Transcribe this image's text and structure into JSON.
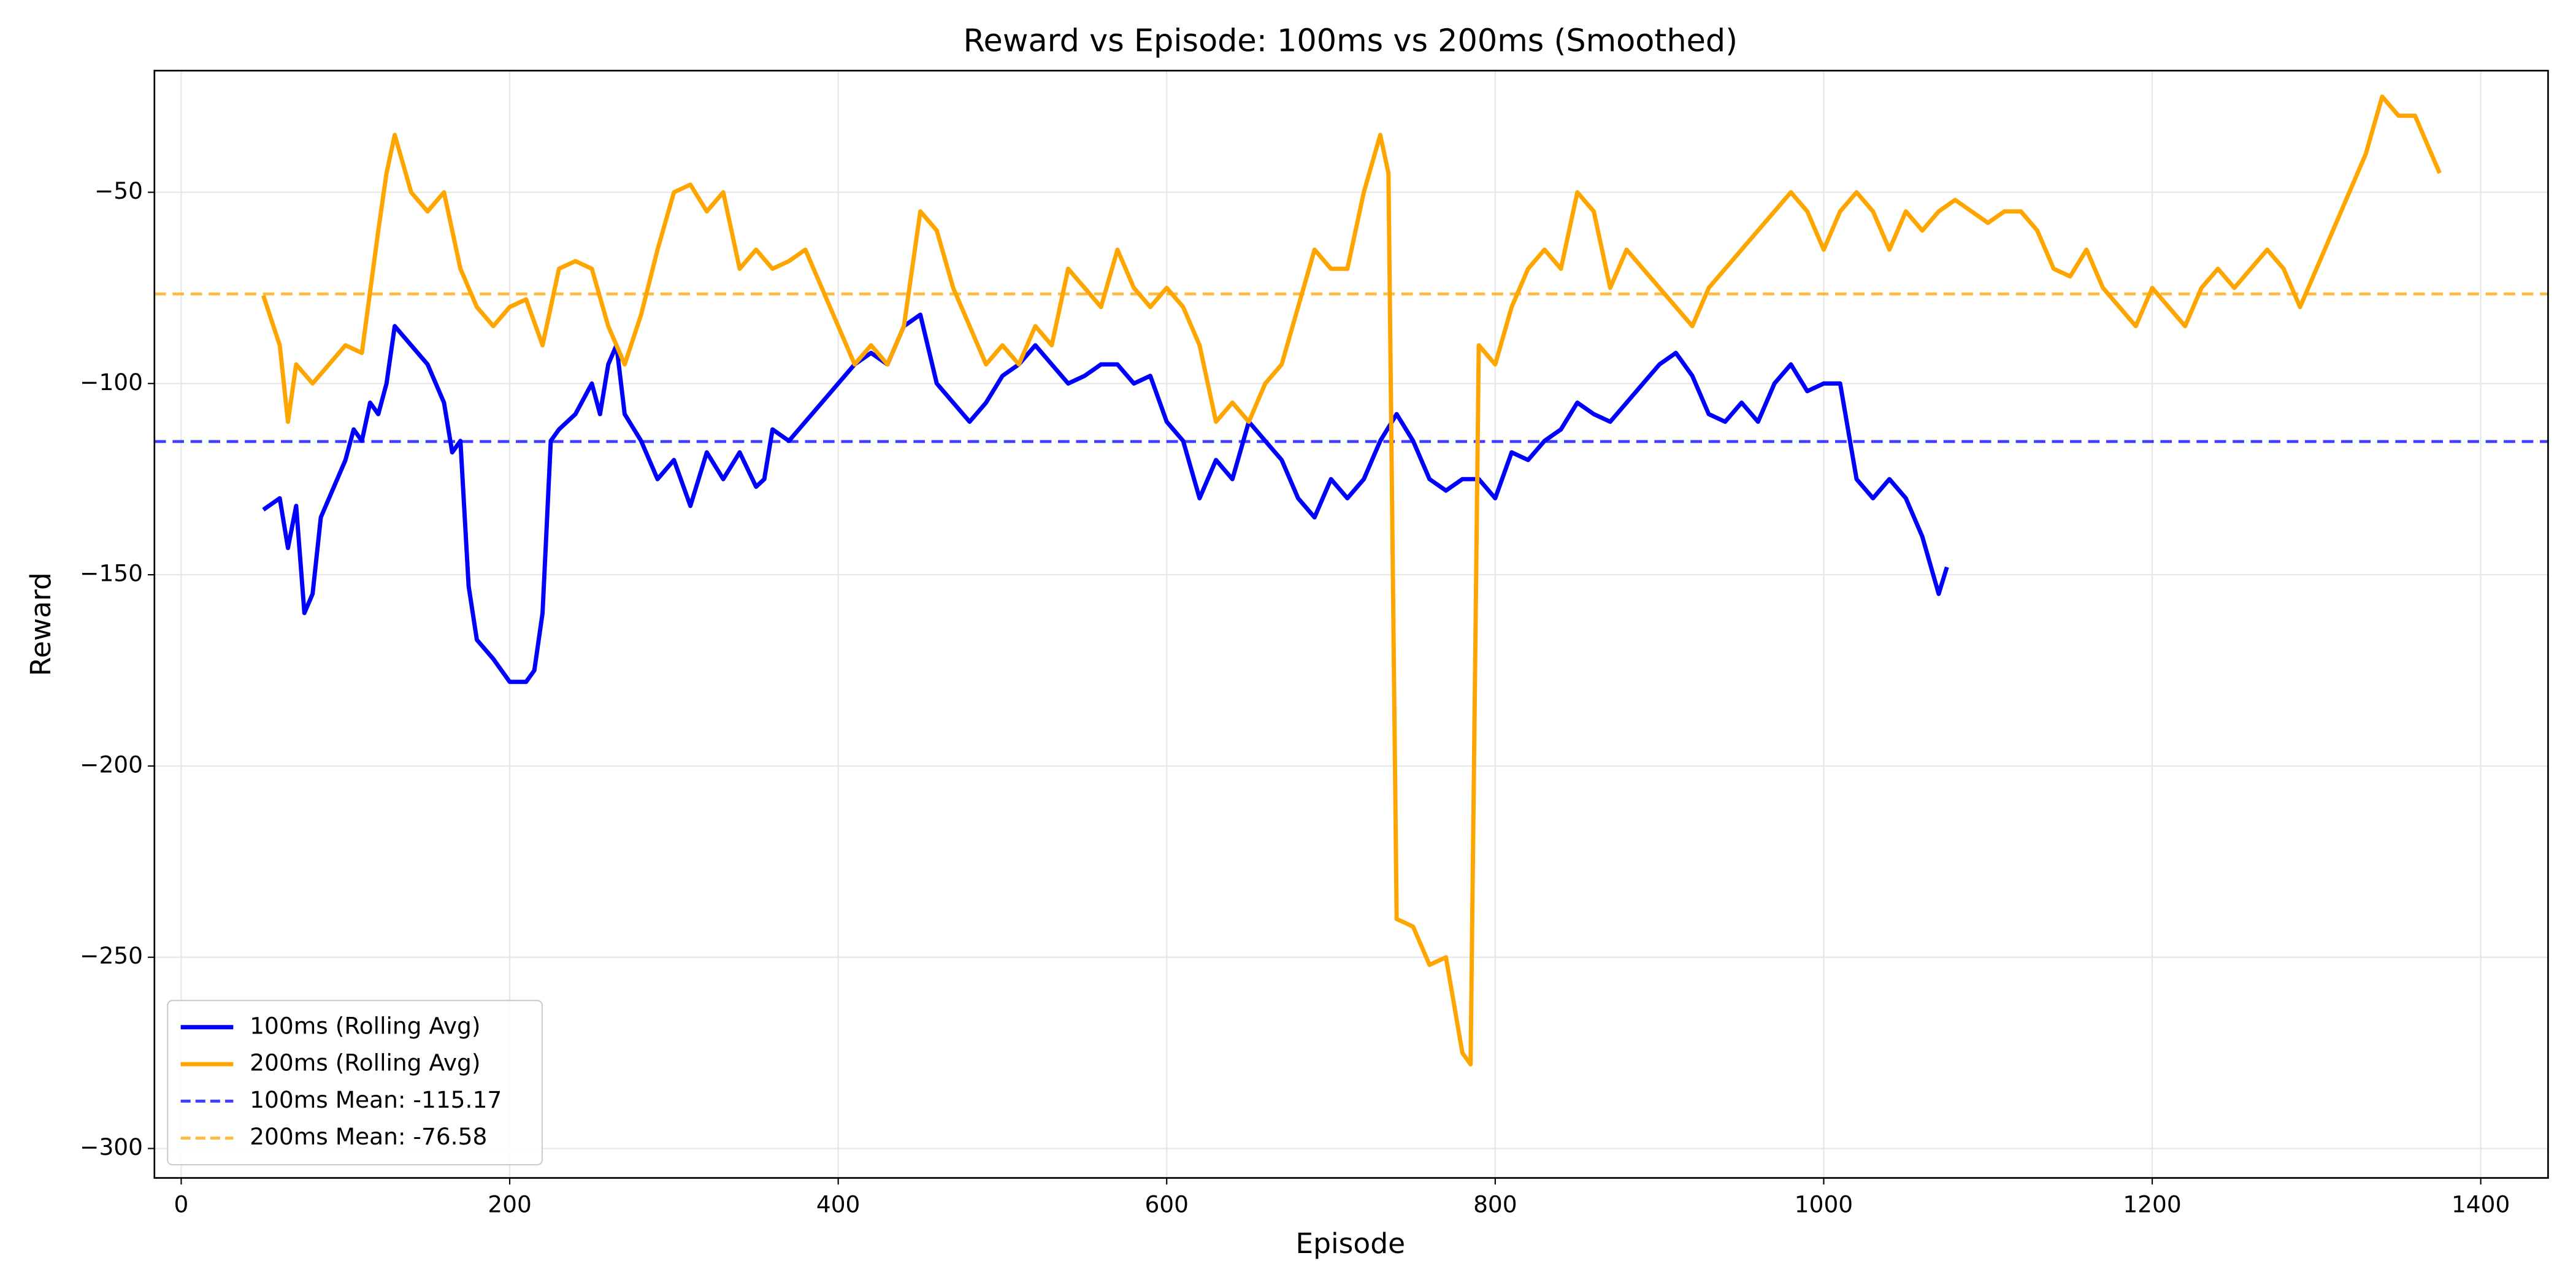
{
  "chart_data": {
    "type": "line",
    "title": "Reward vs Episode: 100ms vs 200ms (Smoothed)",
    "x_label": "Episode",
    "y_label": "Reward",
    "xlim": [
      -16.3,
      1441
    ],
    "ylim": [
      -307.7,
      -18.2
    ],
    "xticks": [
      0,
      200,
      400,
      600,
      800,
      1000,
      1200,
      1400
    ],
    "yticks": [
      {
        "value": -300,
        "label": "−300"
      },
      {
        "value": -250,
        "label": "−250"
      },
      {
        "value": -200,
        "label": "−200"
      },
      {
        "value": -150,
        "label": "−150"
      },
      {
        "value": -100,
        "label": "−100"
      },
      {
        "value": -50,
        "label": "−50"
      }
    ],
    "grid": true,
    "legend_position": "lower left",
    "series": [
      {
        "name": "100ms (Rolling Avg)",
        "color": "#0000ff",
        "x": [
          50,
          60,
          65,
          70,
          75,
          80,
          85,
          90,
          100,
          105,
          110,
          115,
          120,
          125,
          130,
          140,
          150,
          160,
          165,
          170,
          175,
          180,
          190,
          200,
          210,
          215,
          220,
          225,
          230,
          240,
          250,
          255,
          260,
          265,
          270,
          280,
          290,
          300,
          310,
          320,
          330,
          340,
          350,
          355,
          360,
          370,
          380,
          390,
          400,
          410,
          420,
          430,
          440,
          450,
          460,
          470,
          480,
          490,
          500,
          510,
          520,
          530,
          540,
          550,
          560,
          570,
          580,
          590,
          600,
          610,
          620,
          630,
          640,
          650,
          660,
          670,
          680,
          690,
          700,
          710,
          720,
          730,
          740,
          750,
          760,
          770,
          780,
          790,
          800,
          810,
          820,
          830,
          840,
          850,
          860,
          870,
          880,
          890,
          900,
          910,
          920,
          930,
          940,
          950,
          960,
          970,
          980,
          990,
          1000,
          1010,
          1020,
          1030,
          1040,
          1050,
          1060,
          1070,
          1075
        ],
        "values": [
          -133,
          -130,
          -143,
          -132,
          -160,
          -155,
          -135,
          -130,
          -120,
          -112,
          -115,
          -105,
          -108,
          -100,
          -85,
          -90,
          -95,
          -105,
          -118,
          -115,
          -153,
          -167,
          -172,
          -178,
          -178,
          -175,
          -160,
          -115,
          -112,
          -108,
          -100,
          -108,
          -95,
          -90,
          -108,
          -115,
          -125,
          -120,
          -132,
          -118,
          -125,
          -118,
          -127,
          -125,
          -112,
          -115,
          -110,
          -105,
          -100,
          -95,
          -92,
          -95,
          -85,
          -82,
          -100,
          -105,
          -110,
          -105,
          -98,
          -95,
          -90,
          -95,
          -100,
          -98,
          -95,
          -95,
          -100,
          -98,
          -110,
          -115,
          -130,
          -120,
          -125,
          -110,
          -115,
          -120,
          -130,
          -135,
          -125,
          -130,
          -125,
          -115,
          -108,
          -115,
          -125,
          -128,
          -125,
          -125,
          -130,
          -118,
          -120,
          -115,
          -112,
          -105,
          -108,
          -110,
          -105,
          -100,
          -95,
          -92,
          -98,
          -108,
          -110,
          -105,
          -110,
          -100,
          -95,
          -102,
          -100,
          -100,
          -125,
          -130,
          -125,
          -130,
          -140,
          -155,
          -148
        ]
      },
      {
        "name": "200ms (Rolling Avg)",
        "color": "#ffa500",
        "x": [
          50,
          60,
          65,
          70,
          80,
          90,
          100,
          110,
          120,
          125,
          130,
          140,
          150,
          160,
          170,
          180,
          190,
          200,
          210,
          220,
          230,
          240,
          250,
          260,
          270,
          280,
          290,
          300,
          310,
          320,
          330,
          340,
          350,
          360,
          370,
          380,
          390,
          400,
          410,
          420,
          430,
          440,
          450,
          460,
          470,
          480,
          490,
          500,
          510,
          520,
          530,
          540,
          550,
          560,
          570,
          580,
          590,
          600,
          610,
          620,
          630,
          640,
          650,
          660,
          670,
          680,
          690,
          700,
          710,
          720,
          730,
          735,
          740,
          750,
          760,
          770,
          780,
          785,
          790,
          800,
          810,
          820,
          830,
          840,
          850,
          860,
          870,
          880,
          890,
          900,
          910,
          920,
          930,
          940,
          950,
          960,
          970,
          980,
          990,
          1000,
          1010,
          1020,
          1030,
          1040,
          1050,
          1060,
          1070,
          1080,
          1090,
          1100,
          1110,
          1120,
          1130,
          1140,
          1150,
          1160,
          1170,
          1180,
          1190,
          1200,
          1210,
          1220,
          1230,
          1240,
          1250,
          1260,
          1270,
          1280,
          1290,
          1300,
          1310,
          1320,
          1330,
          1340,
          1350,
          1360,
          1370,
          1375
        ],
        "values": [
          -77,
          -90,
          -110,
          -95,
          -100,
          -95,
          -90,
          -92,
          -60,
          -45,
          -35,
          -50,
          -55,
          -50,
          -70,
          -80,
          -85,
          -80,
          -78,
          -90,
          -70,
          -68,
          -70,
          -85,
          -95,
          -82,
          -65,
          -50,
          -48,
          -55,
          -50,
          -70,
          -65,
          -70,
          -68,
          -65,
          -75,
          -85,
          -95,
          -90,
          -95,
          -85,
          -55,
          -60,
          -75,
          -85,
          -95,
          -90,
          -95,
          -85,
          -90,
          -70,
          -75,
          -80,
          -65,
          -75,
          -80,
          -75,
          -80,
          -90,
          -110,
          -105,
          -110,
          -100,
          -95,
          -80,
          -65,
          -70,
          -70,
          -50,
          -35,
          -45,
          -240,
          -242,
          -252,
          -250,
          -275,
          -278,
          -90,
          -95,
          -80,
          -70,
          -65,
          -70,
          -50,
          -55,
          -75,
          -65,
          -70,
          -75,
          -80,
          -85,
          -75,
          -70,
          -65,
          -60,
          -55,
          -50,
          -55,
          -65,
          -55,
          -50,
          -55,
          -65,
          -55,
          -60,
          -55,
          -52,
          -55,
          -58,
          -55,
          -55,
          -60,
          -70,
          -72,
          -65,
          -75,
          -80,
          -85,
          -75,
          -80,
          -85,
          -75,
          -70,
          -75,
          -70,
          -65,
          -70,
          -80,
          -70,
          -60,
          -50,
          -40,
          -25,
          -30,
          -30,
          -40,
          -45
        ]
      }
    ],
    "reference_lines": [
      {
        "name": "100ms Mean: -115.17",
        "value": -115.17,
        "color": "#0000ff"
      },
      {
        "name": "200ms Mean: -76.58",
        "value": -76.58,
        "color": "#ffa500"
      }
    ]
  }
}
